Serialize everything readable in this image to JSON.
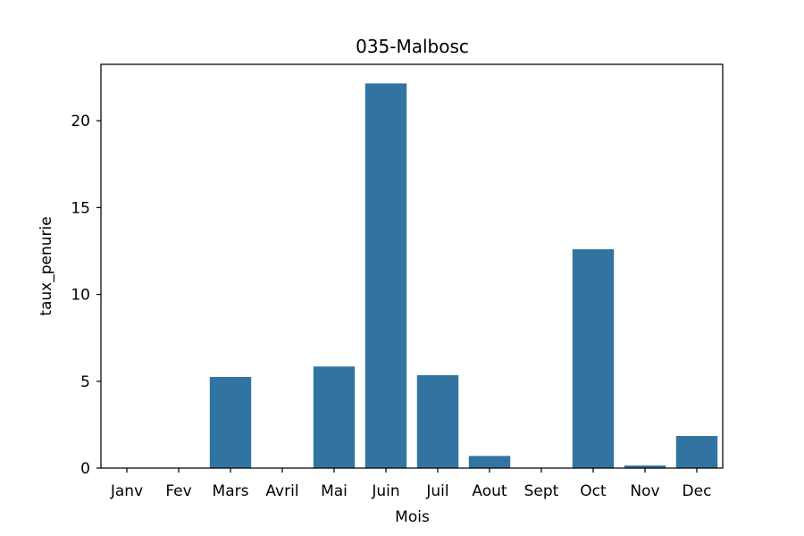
{
  "chart_data": {
    "type": "bar",
    "title": "035-Malbosc",
    "xlabel": "Mois",
    "ylabel": "taux_penurie",
    "categories": [
      "Janv",
      "Fev",
      "Mars",
      "Avril",
      "Mai",
      "Juin",
      "Juil",
      "Aout",
      "Sept",
      "Oct",
      "Nov",
      "Dec"
    ],
    "values": [
      0,
      0,
      5.25,
      0,
      5.85,
      22.15,
      5.35,
      0.7,
      0,
      12.6,
      0.15,
      1.85
    ],
    "ylim": [
      0,
      23.25
    ],
    "yticks": [
      0,
      5,
      10,
      15,
      20
    ],
    "bar_color": "#3274a1",
    "grid": false,
    "legend": "none"
  }
}
